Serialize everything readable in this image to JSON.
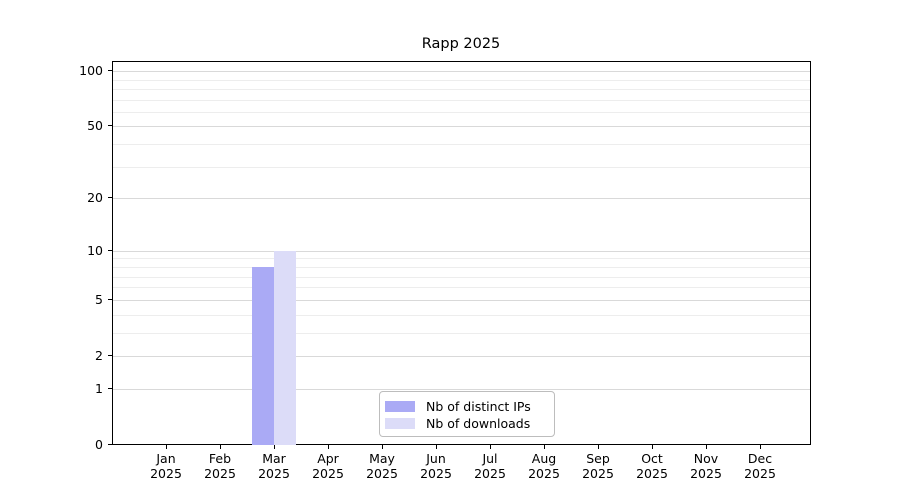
{
  "chart_data": {
    "type": "bar",
    "title": "Rapp 2025",
    "categories": [
      "Jan",
      "Feb",
      "Mar",
      "Apr",
      "May",
      "Jun",
      "Jul",
      "Aug",
      "Sep",
      "Oct",
      "Nov",
      "Dec"
    ],
    "category_year": "2025",
    "series": [
      {
        "name": "Nb of distinct IPs",
        "color": "#aaaaf5",
        "values": [
          0,
          0,
          8,
          0,
          0,
          0,
          0,
          0,
          0,
          0,
          0,
          0
        ]
      },
      {
        "name": "Nb of downloads",
        "color": "#dcdcf8",
        "values": [
          0,
          0,
          10,
          0,
          0,
          0,
          0,
          0,
          0,
          0,
          0,
          0
        ]
      }
    ],
    "scale": "log1p",
    "ylim": [
      0,
      112
    ],
    "y_major_ticks": [
      100,
      50,
      20,
      10,
      5,
      2,
      1,
      0
    ],
    "y_minor_ticks": [
      90,
      80,
      70,
      60,
      40,
      30,
      9,
      8,
      7,
      6,
      4,
      3
    ],
    "grid": true,
    "legend_position": "lower center"
  },
  "colors": {
    "grid_major": "#d9d9d9",
    "grid_minor": "#ededed",
    "axis": "#000000",
    "background": "#ffffff"
  }
}
